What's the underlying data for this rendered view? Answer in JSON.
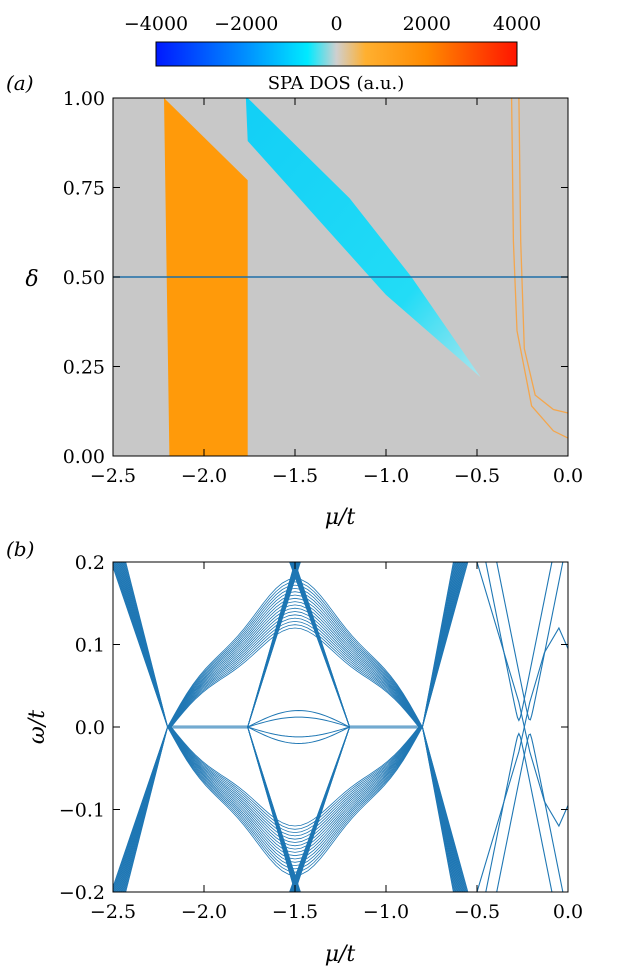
{
  "colorbar": {
    "title": "SPA DOS (a.u.)",
    "ticks": [
      "−4000",
      "−2000",
      "0",
      "2000",
      "4000"
    ],
    "range": [
      -4000,
      4000
    ],
    "colors": [
      "#0019ff",
      "#00eaff",
      "#cfcfcf",
      "#ff9a00",
      "#ff1500"
    ]
  },
  "chart_data": [
    {
      "panel": "(a)",
      "type": "heatmap",
      "xlabel": "μ/t",
      "ylabel": "δ",
      "xlim": [
        -2.5,
        0.0
      ],
      "ylim": [
        0.0,
        1.0
      ],
      "xticks": [
        "−2.5",
        "−2.0",
        "−1.5",
        "−1.0",
        "−0.5",
        "0.0"
      ],
      "yticks": [
        "0.00",
        "0.25",
        "0.50",
        "0.75",
        "1.00"
      ],
      "background_color": "#c8c8c8",
      "regions": [
        {
          "sign": "positive",
          "color": "#ff9a0a",
          "polygon_mu_delta": [
            [
              -2.22,
              1.0
            ],
            [
              -2.19,
              0.0
            ],
            [
              -1.76,
              0.0
            ],
            [
              -1.76,
              0.77
            ]
          ]
        },
        {
          "sign": "negative",
          "color": "#22d8f6",
          "polygon_mu_delta": [
            [
              -1.77,
              1.0
            ],
            [
              -1.76,
              0.88
            ],
            [
              -1.0,
              0.45
            ],
            [
              -0.48,
              0.22
            ],
            [
              -0.86,
              0.5
            ],
            [
              -1.2,
              0.72
            ],
            [
              -1.76,
              1.0
            ]
          ]
        }
      ],
      "curves": [
        {
          "color": "#f4a64c",
          "points_mu_delta": [
            [
              -0.27,
              1.0
            ],
            [
              -0.26,
              0.6
            ],
            [
              -0.24,
              0.3
            ],
            [
              -0.18,
              0.17
            ],
            [
              -0.08,
              0.13
            ],
            [
              0.0,
              0.12
            ]
          ]
        },
        {
          "color": "#f4a64c",
          "points_mu_delta": [
            [
              -0.31,
              1.0
            ],
            [
              -0.3,
              0.6
            ],
            [
              -0.28,
              0.35
            ],
            [
              -0.2,
              0.14
            ],
            [
              -0.08,
              0.07
            ],
            [
              0.0,
              0.05
            ]
          ]
        }
      ],
      "hline": {
        "delta": 0.5,
        "color": "#1f6fa7"
      }
    },
    {
      "panel": "(b)",
      "type": "line",
      "xlabel": "ω/t",
      "xaxis_label": "μ/t",
      "ylabel": "ω/t",
      "xlim": [
        -2.5,
        0.0
      ],
      "ylim": [
        -0.2,
        0.2
      ],
      "xticks": [
        "−2.5",
        "−2.0",
        "−1.5",
        "−1.0",
        "−0.5",
        "0.0"
      ],
      "yticks": [
        "−0.2",
        "−0.1",
        "0.0",
        "0.1",
        "0.2"
      ],
      "line_color": "#1f77b4",
      "gap_closing_points_mu": [
        -2.2,
        -1.76,
        -1.2,
        -0.8
      ],
      "fan_crossing_mu": -1.5,
      "band_edges_mu": [
        -2.46,
        -0.6
      ],
      "edge_states_mu": [
        -0.27,
        -0.21
      ]
    }
  ]
}
